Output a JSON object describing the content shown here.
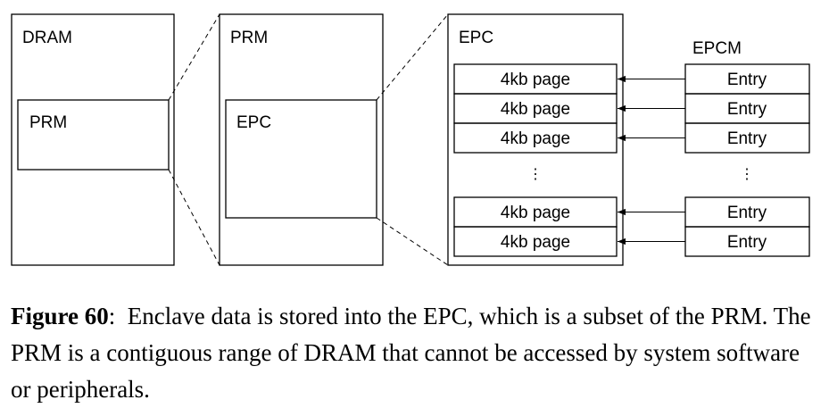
{
  "diagram": {
    "dram_label": "DRAM",
    "dram_prm_label": "PRM",
    "prm_label": "PRM",
    "prm_epc_label": "EPC",
    "epc_label": "EPC",
    "epcm_label": "EPCM",
    "page_label": "4kb page",
    "entry_label": "Entry",
    "ellipsis": "⋮",
    "page_rows": 5,
    "line_color": "#000000"
  },
  "caption": {
    "label": "Figure 60",
    "separator": ":",
    "text": "Enclave data is stored into the EPC, which is a subset of the PRM. The PRM is a contiguous range of DRAM that cannot be accessed by system software or peripherals."
  }
}
